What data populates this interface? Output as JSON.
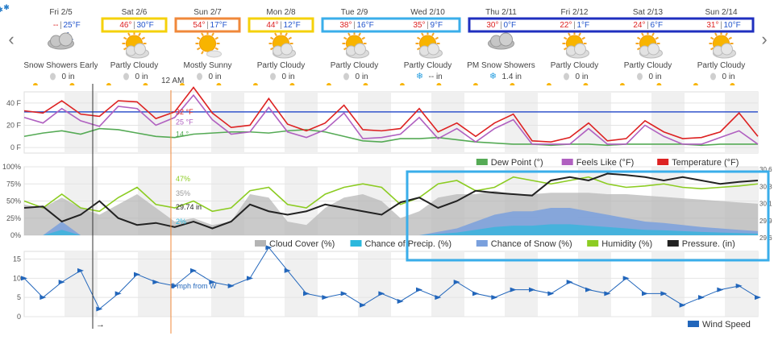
{
  "nav": {
    "prev": "‹",
    "next": "›"
  },
  "now_label": "12 AM",
  "days": [
    {
      "label": "Fri 2/5",
      "hi": "--",
      "lo": "25°F",
      "icon": "snow-showers-icon",
      "cond": "Snow Showers Early",
      "precip": "0 in",
      "precip_type": "rain"
    },
    {
      "label": "Sat 2/6",
      "hi": "46°",
      "lo": "30°F",
      "icon": "partly-cloudy-icon",
      "cond": "Partly Cloudy",
      "precip": "0 in",
      "precip_type": "rain"
    },
    {
      "label": "Sun 2/7",
      "hi": "54°",
      "lo": "17°F",
      "icon": "mostly-sunny-icon",
      "cond": "Mostly Sunny",
      "precip": "0 in",
      "precip_type": "rain"
    },
    {
      "label": "Mon 2/8",
      "hi": "44°",
      "lo": "12°F",
      "icon": "partly-cloudy-icon",
      "cond": "Partly Cloudy",
      "precip": "0 in",
      "precip_type": "rain"
    },
    {
      "label": "Tue 2/9",
      "hi": "38°",
      "lo": "16°F",
      "icon": "partly-cloudy-icon",
      "cond": "Partly Cloudy",
      "precip": "0 in",
      "precip_type": "rain"
    },
    {
      "label": "Wed 2/10",
      "hi": "35°",
      "lo": "9°F",
      "icon": "partly-cloudy-icon",
      "cond": "Partly Cloudy",
      "precip": "-- in",
      "precip_type": "snow"
    },
    {
      "label": "Thu 2/11",
      "hi": "30°",
      "lo": "0°F",
      "icon": "pm-snow-showers-icon",
      "cond": "PM Snow Showers",
      "precip": "1.4 in",
      "precip_type": "snow"
    },
    {
      "label": "Fri 2/12",
      "hi": "22°",
      "lo": "1°F",
      "icon": "partly-cloudy-icon",
      "cond": "Partly Cloudy",
      "precip": "0 in",
      "precip_type": "rain"
    },
    {
      "label": "Sat 2/13",
      "hi": "24°",
      "lo": "6°F",
      "icon": "partly-cloudy-icon",
      "cond": "Partly Cloudy",
      "precip": "0 in",
      "precip_type": "rain"
    },
    {
      "label": "Sun 2/14",
      "hi": "31°",
      "lo": "10°F",
      "icon": "partly-cloudy-icon",
      "cond": "Partly Cloudy",
      "precip": "0 in",
      "precip_type": "rain"
    }
  ],
  "highlights": [
    {
      "days": [
        1
      ],
      "color": "#f5d10a"
    },
    {
      "days": [
        2
      ],
      "color": "#f0883a"
    },
    {
      "days": [
        3
      ],
      "color": "#f5d10a"
    },
    {
      "days": [
        4,
        5
      ],
      "color": "#3aaeea"
    },
    {
      "days": [
        6,
        7,
        8,
        9
      ],
      "color": "#1f2fbf"
    }
  ],
  "chart_data": [
    {
      "type": "line",
      "ylim": [
        -5,
        50
      ],
      "ticks": [
        {
          "v": 40,
          "label": "40 F"
        },
        {
          "v": 20,
          "label": "20 F"
        },
        {
          "v": 0,
          "label": "0 F"
        }
      ],
      "reference_line": {
        "value": 32,
        "color": "#3355cc"
      },
      "series": [
        {
          "name": "Dew Point (°)",
          "color": "#55aa55",
          "values": [
            10,
            13,
            15,
            12,
            17,
            16,
            13,
            10,
            9,
            12,
            13,
            14,
            14,
            13,
            15,
            16,
            14,
            10,
            6,
            5,
            8,
            8,
            9,
            7,
            5,
            4,
            3,
            3,
            2,
            3,
            3,
            2,
            3,
            3,
            3,
            3,
            2,
            3,
            3,
            3
          ]
        },
        {
          "name": "Feels Like (°F)",
          "color": "#b060c0",
          "values": [
            27,
            22,
            35,
            24,
            19,
            37,
            35,
            20,
            27,
            47,
            25,
            12,
            14,
            36,
            14,
            9,
            16,
            31,
            8,
            9,
            12,
            27,
            8,
            17,
            5,
            17,
            25,
            3,
            3,
            3,
            17,
            3,
            3,
            20,
            10,
            3,
            3,
            9,
            15,
            3
          ]
        },
        {
          "name": "Temperature (°F)",
          "color": "#dd2222",
          "values": [
            33,
            31,
            42,
            30,
            28,
            42,
            41,
            26,
            32,
            54,
            31,
            18,
            20,
            44,
            21,
            15,
            22,
            38,
            16,
            15,
            17,
            35,
            14,
            22,
            10,
            22,
            30,
            6,
            5,
            9,
            22,
            6,
            8,
            24,
            14,
            8,
            9,
            14,
            31,
            10
          ]
        }
      ],
      "annotations": [
        {
          "label": "32 °F",
          "color": "#dd2222"
        },
        {
          "label": "25 °F",
          "color": "#b060c0"
        },
        {
          "label": "14 °",
          "color": "#55aa55"
        }
      ]
    },
    {
      "type": "area",
      "ylim": [
        0,
        100
      ],
      "ticks": [
        {
          "v": 100,
          "label": "100%"
        },
        {
          "v": 75,
          "label": "75%"
        },
        {
          "v": 50,
          "label": "50%"
        },
        {
          "v": 25,
          "label": "25%"
        },
        {
          "v": 0,
          "label": "0%"
        }
      ],
      "right_ticks": [
        {
          "label": "30.6"
        },
        {
          "label": "30.3"
        },
        {
          "label": "30.1"
        },
        {
          "label": "29.9"
        },
        {
          "label": "29.6"
        }
      ],
      "series": [
        {
          "name": "Cloud Cover (%)",
          "color": "#b4b4b4",
          "values": [
            45,
            40,
            55,
            40,
            30,
            45,
            60,
            40,
            20,
            25,
            15,
            20,
            60,
            55,
            20,
            15,
            40,
            55,
            60,
            50,
            25,
            35,
            55,
            60,
            60,
            65,
            60,
            60,
            62,
            62,
            62,
            60,
            60,
            58,
            56,
            54,
            52,
            50,
            48,
            46
          ]
        },
        {
          "name": "Chance of Precip. (%)",
          "color": "#2bb8dd",
          "values": [
            0,
            0,
            20,
            0,
            0,
            0,
            0,
            0,
            0,
            0,
            0,
            0,
            0,
            0,
            0,
            0,
            0,
            0,
            0,
            0,
            0,
            0,
            5,
            10,
            20,
            30,
            35,
            35,
            40,
            40,
            35,
            30,
            25,
            20,
            18,
            15,
            12,
            10,
            8,
            6
          ]
        },
        {
          "name": "Chance of Snow (%)",
          "color": "#7aa0dd",
          "values": [
            0,
            0,
            20,
            0,
            0,
            0,
            0,
            0,
            0,
            0,
            0,
            0,
            0,
            0,
            0,
            0,
            0,
            0,
            0,
            0,
            0,
            0,
            5,
            10,
            20,
            30,
            35,
            35,
            40,
            40,
            35,
            30,
            25,
            20,
            18,
            15,
            12,
            10,
            8,
            6
          ]
        },
        {
          "name": "Humidity (%)",
          "color": "#8ccc22",
          "values": [
            50,
            40,
            60,
            40,
            35,
            55,
            70,
            45,
            40,
            50,
            35,
            40,
            65,
            70,
            45,
            40,
            60,
            70,
            75,
            70,
            45,
            55,
            75,
            80,
            65,
            70,
            85,
            80,
            75,
            80,
            85,
            75,
            70,
            72,
            75,
            70,
            68,
            70,
            72,
            75
          ]
        },
        {
          "name": "Pressure. (in)",
          "color": "#222222",
          "values": [
            40,
            42,
            20,
            30,
            50,
            25,
            15,
            18,
            12,
            20,
            10,
            20,
            45,
            35,
            30,
            35,
            45,
            40,
            35,
            30,
            48,
            55,
            40,
            50,
            65,
            62,
            60,
            58,
            80,
            85,
            80,
            90,
            88,
            85,
            80,
            85,
            80,
            75,
            78,
            80
          ]
        }
      ],
      "annotations": [
        {
          "label": "47%",
          "color": "#8ccc22"
        },
        {
          "label": "35%",
          "color": "#999999"
        },
        {
          "label": "29.74 in",
          "color": "#222222"
        },
        {
          "label": "2%",
          "color": "#2bb8dd"
        }
      ]
    },
    {
      "type": "line",
      "ylim": [
        0,
        17
      ],
      "ticks": [
        {
          "v": 15,
          "label": "15"
        },
        {
          "v": 10,
          "label": "10"
        },
        {
          "v": 5,
          "label": "5"
        },
        {
          "v": 0,
          "label": "0"
        }
      ],
      "series": [
        {
          "name": "Wind Speed",
          "color": "#2266bb",
          "values": [
            10,
            5,
            9,
            12,
            2,
            6,
            11,
            9,
            8,
            12,
            9,
            8,
            10,
            18,
            12,
            6,
            5,
            6,
            3,
            6,
            4,
            7,
            5,
            9,
            6,
            5,
            7,
            7,
            6,
            9,
            7,
            6,
            10,
            6,
            6,
            3,
            5,
            7,
            8,
            5
          ]
        }
      ],
      "annotations": [
        {
          "label": "8 mph from W",
          "color": "#2266bb"
        }
      ]
    }
  ],
  "cursor_arrow": "→"
}
